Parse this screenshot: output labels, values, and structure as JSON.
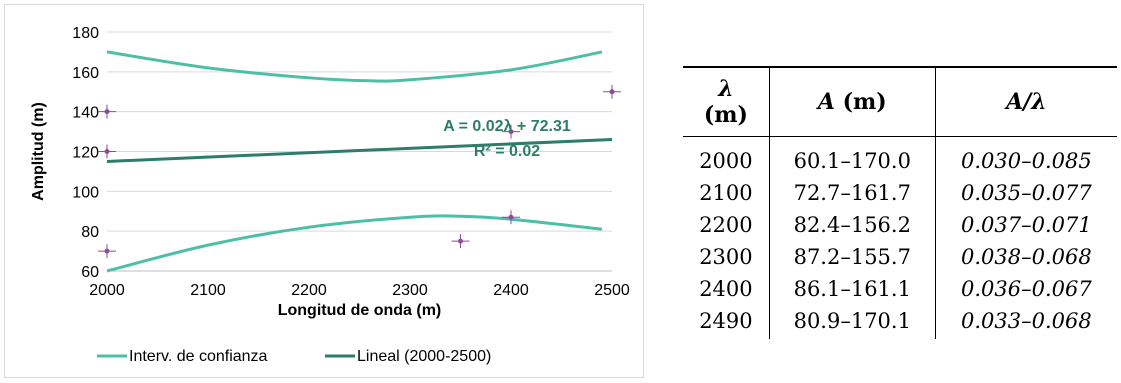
{
  "chart_data": {
    "type": "line",
    "xlabel": "Longitud de onda (m)",
    "ylabel": "Amplitud (m)",
    "xlim": [
      2000,
      2500
    ],
    "ylim": [
      60,
      180
    ],
    "xticks": [
      "2000",
      "2100",
      "2200",
      "2300",
      "2400",
      "2500"
    ],
    "yticks": [
      "60",
      "80",
      "100",
      "120",
      "140",
      "160",
      "180"
    ],
    "grid": "horizontal",
    "equation": "A = 0.02λ + 72.31",
    "r_squared": "R² = 0.02",
    "points": [
      {
        "x": 2000,
        "y": 140
      },
      {
        "x": 2000,
        "y": 120
      },
      {
        "x": 2000,
        "y": 70
      },
      {
        "x": 2350,
        "y": 75
      },
      {
        "x": 2400,
        "y": 130
      },
      {
        "x": 2400,
        "y": 87
      },
      {
        "x": 2500,
        "y": 150
      }
    ],
    "series": [
      {
        "name": "Interv. de confianza",
        "part": "upper",
        "x": [
          2000,
          2100,
          2200,
          2260,
          2300,
          2400,
          2490
        ],
        "values": [
          170,
          162,
          157,
          155.5,
          156,
          161,
          170
        ]
      },
      {
        "name": "Interv. de confianza",
        "part": "lower",
        "x": [
          2000,
          2100,
          2200,
          2300,
          2350,
          2400,
          2490
        ],
        "values": [
          60,
          73,
          82,
          87,
          87.5,
          86,
          81
        ]
      },
      {
        "name": "Lineal (2000-2500)",
        "x": [
          2000,
          2500
        ],
        "values": [
          115,
          126
        ]
      }
    ],
    "legend": {
      "position": "bottom",
      "items": [
        {
          "label": "Interv. de confianza",
          "color": "#4dbfa6"
        },
        {
          "label": "Lineal (2000-2500)",
          "color": "#2e7d6b"
        }
      ]
    },
    "colors": {
      "ci": "#4dbfa6",
      "fit": "#2e7d6b",
      "points": "#8e4a9e",
      "grid": "#d9d9d9"
    }
  },
  "table": {
    "headers": [
      "λ (m)",
      "A (m)",
      "A/λ"
    ],
    "header_parts": {
      "lambda": "λ",
      "lambda_unit": "(m)",
      "amp": "A",
      "amp_unit": "(m)",
      "ratio": "A/λ"
    },
    "rows": [
      [
        "2000",
        "60.1–170.0",
        "0.030–0.085"
      ],
      [
        "2100",
        "72.7–161.7",
        "0.035–0.077"
      ],
      [
        "2200",
        "82.4–156.2",
        "0.037–0.071"
      ],
      [
        "2300",
        "87.2–155.7",
        "0.038–0.068"
      ],
      [
        "2400",
        "86.1–161.1",
        "0.036–0.067"
      ],
      [
        "2490",
        "80.9–170.1",
        "0.033–0.068"
      ]
    ]
  }
}
